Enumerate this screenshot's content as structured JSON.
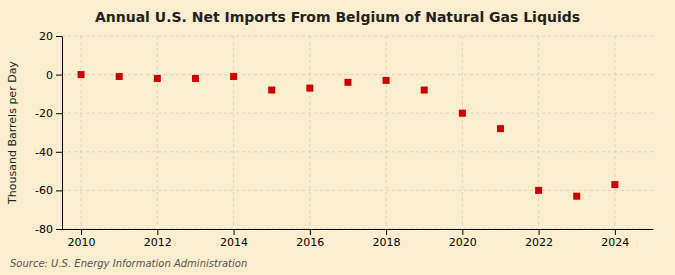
{
  "chart_data": {
    "type": "scatter",
    "title": "Annual U.S. Net Imports From Belgium of Natural Gas Liquids",
    "ylabel": "Thousand Barrels per Day",
    "source": "Source: U.S. Energy Information Administration",
    "x": [
      2010,
      2011,
      2012,
      2013,
      2014,
      2015,
      2016,
      2017,
      2018,
      2019,
      2020,
      2021,
      2022,
      2023,
      2024
    ],
    "values": [
      0,
      -1,
      -2,
      -2,
      -1,
      -8,
      -7,
      -4,
      -3,
      -8,
      -20,
      -28,
      -60,
      -63,
      -57
    ],
    "xlim": [
      2009.5,
      2025.0
    ],
    "xticks": [
      2010,
      2012,
      2014,
      2016,
      2018,
      2020,
      2022,
      2024
    ],
    "ylim": [
      -80,
      20
    ],
    "yticks": [
      -80,
      -60,
      -40,
      -20,
      0,
      20
    ],
    "color": "#cc0000",
    "marker": "square",
    "grid": true
  }
}
